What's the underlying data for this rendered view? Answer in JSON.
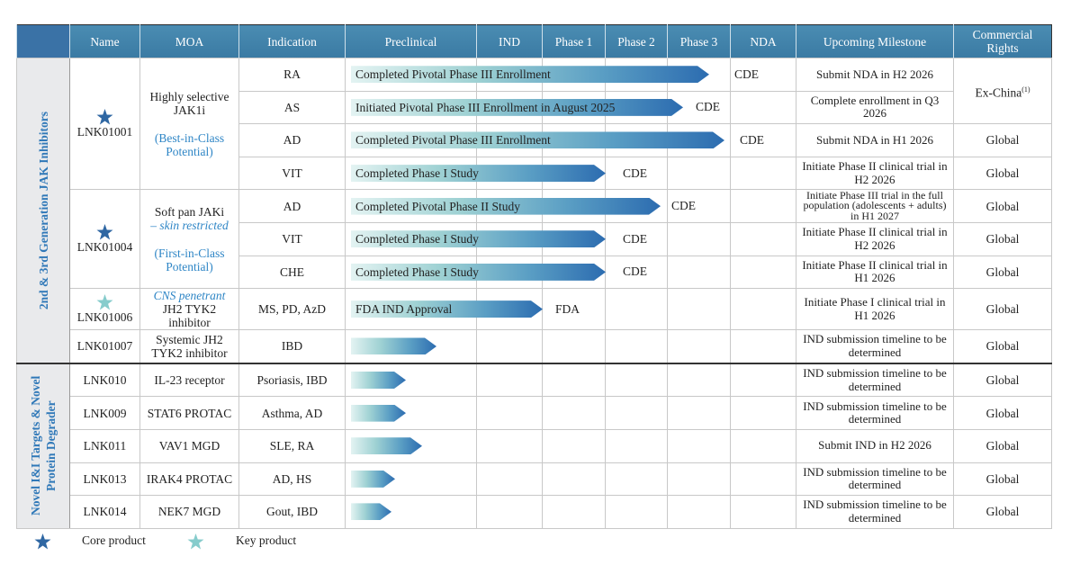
{
  "header": {
    "columns": [
      "Name",
      "MOA",
      "Indication",
      "Preclinical",
      "IND",
      "Phase 1",
      "Phase 2",
      "Phase 3",
      "NDA",
      "Upcoming Milestone",
      "Commercial Rights"
    ]
  },
  "groups": [
    {
      "label": "2nd & 3rd Generation JAK Inhibitors",
      "products": [
        {
          "name": "LNK01001",
          "moa": [
            "Highly selective JAK1i",
            "(Best-in-Class Potential)"
          ],
          "programs": [
            {
              "indication": "RA",
              "status": "Completed Pivotal Phase III Enrollment",
              "agency": "CDE",
              "milestone": "Submit NDA in H2 2026",
              "rights": "Ex-China",
              "rights_note": "(1)"
            },
            {
              "indication": "AS",
              "status": "Initiated Pivotal Phase III Enrollment in August 2025",
              "agency": "CDE",
              "milestone": "Complete enrollment in Q3 2026"
            },
            {
              "indication": "AD",
              "status": "Completed Pivotal Phase III Enrollment",
              "agency": "CDE",
              "milestone": "Submit NDA in H1 2026",
              "rights": "Global"
            },
            {
              "indication": "VIT",
              "status": "Completed Phase I Study",
              "agency": "CDE",
              "milestone": "Initiate Phase II clinical trial in H2 2026",
              "rights": "Global"
            }
          ]
        },
        {
          "name": "LNK01004",
          "moa": [
            "Soft pan JAKi",
            "– skin restricted",
            "(First-in-Class Potential)"
          ],
          "programs": [
            {
              "indication": "AD",
              "status": "Completed Pivotal Phase II Study",
              "agency": "CDE",
              "milestone": "Initiate Phase III trial in the full population (adolescents + adults) in H1 2027",
              "rights": "Global"
            },
            {
              "indication": "VIT",
              "status": "Completed Phase I Study",
              "agency": "CDE",
              "milestone": "Initiate Phase II clinical trial in H2 2026",
              "rights": "Global"
            },
            {
              "indication": "CHE",
              "status": "Completed Phase I Study",
              "agency": "CDE",
              "milestone": "Initiate Phase II clinical trial in H1 2026",
              "rights": "Global"
            }
          ]
        },
        {
          "name": "LNK01006",
          "moa": [
            "CNS penetrant",
            "JH2 TYK2 inhibitor"
          ],
          "programs": [
            {
              "indication": "MS, PD, AzD",
              "status": "FDA IND Approval",
              "agency": "FDA",
              "milestone": "Initiate Phase I clinical trial in H1 2026",
              "rights": "Global"
            }
          ]
        },
        {
          "name": "LNK01007",
          "moa": "Systemic JH2 TYK2 inhibitor",
          "programs": [
            {
              "indication": "IBD",
              "milestone": "IND submission timeline to be determined",
              "rights": "Global"
            }
          ]
        }
      ]
    },
    {
      "label": "Novel I&I Targets & Novel Protein Degrader",
      "products": [
        {
          "name": "LNK010",
          "moa": "IL-23 receptor",
          "programs": [
            {
              "indication": "Psoriasis, IBD",
              "milestone": "IND submission timeline to be determined",
              "rights": "Global"
            }
          ]
        },
        {
          "name": "LNK009",
          "moa": "STAT6 PROTAC",
          "programs": [
            {
              "indication": "Asthma, AD",
              "milestone": "IND submission timeline to be determined",
              "rights": "Global"
            }
          ]
        },
        {
          "name": "LNK011",
          "moa": "VAV1 MGD",
          "programs": [
            {
              "indication": "SLE, RA",
              "milestone": "Submit IND in H2 2026",
              "rights": "Global"
            }
          ]
        },
        {
          "name": "LNK013",
          "moa": "IRAK4 PROTAC",
          "programs": [
            {
              "indication": "AD, HS",
              "milestone": "IND submission timeline to be determined",
              "rights": "Global"
            }
          ]
        },
        {
          "name": "LNK014",
          "moa": "NEK7 MGD",
          "programs": [
            {
              "indication": "Gout, IBD",
              "milestone": "IND submission timeline to be determined",
              "rights": "Global"
            }
          ]
        }
      ]
    }
  ],
  "legend": [
    "Core product",
    "Key product"
  ]
}
